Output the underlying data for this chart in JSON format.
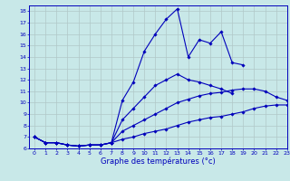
{
  "xlabel": "Graphe des températures (°c)",
  "ylabel_ticks": [
    6,
    7,
    8,
    9,
    10,
    11,
    12,
    13,
    14,
    15,
    16,
    17,
    18
  ],
  "xlim": [
    -0.5,
    23
  ],
  "ylim": [
    6,
    18.5
  ],
  "xticks": [
    0,
    1,
    2,
    3,
    4,
    5,
    6,
    7,
    8,
    9,
    10,
    11,
    12,
    13,
    14,
    15,
    16,
    17,
    18,
    19,
    20,
    21,
    22,
    23
  ],
  "background_color": "#c8e8e8",
  "line_color": "#0000bb",
  "grid_color": "#b0c8c8",
  "line_max_x": [
    0,
    1,
    2,
    3,
    4,
    5,
    6,
    7,
    8,
    9,
    10,
    11,
    12,
    13,
    14,
    15,
    16,
    17,
    18,
    19,
    20,
    21
  ],
  "line_max_y": [
    7.0,
    6.5,
    6.5,
    6.3,
    6.2,
    6.3,
    6.3,
    6.5,
    10.2,
    11.8,
    14.5,
    16.0,
    17.3,
    18.2,
    14.0,
    15.5,
    15.2,
    16.2,
    13.5,
    13.3,
    null,
    null
  ],
  "line_min_x": [
    0,
    1,
    2,
    3,
    4,
    5,
    6,
    7,
    8,
    9,
    10,
    11,
    12,
    13,
    14,
    15,
    16,
    17,
    18,
    19,
    20,
    21,
    22,
    23
  ],
  "line_min_y": [
    7.0,
    6.5,
    6.5,
    6.3,
    6.2,
    6.3,
    6.3,
    6.5,
    6.8,
    7.0,
    7.3,
    7.5,
    7.7,
    8.0,
    8.3,
    8.5,
    8.7,
    8.8,
    9.0,
    9.2,
    9.5,
    9.7,
    9.8,
    9.8
  ],
  "line_avg_x": [
    0,
    1,
    2,
    3,
    4,
    5,
    6,
    7,
    8,
    9,
    10,
    11,
    12,
    13,
    14,
    15,
    16,
    17,
    18,
    19,
    20,
    21,
    22,
    23
  ],
  "line_avg_y": [
    7.0,
    6.5,
    6.5,
    6.3,
    6.2,
    6.3,
    6.3,
    6.5,
    7.5,
    8.0,
    8.5,
    9.0,
    9.5,
    10.0,
    10.3,
    10.6,
    10.8,
    10.9,
    11.1,
    11.2,
    11.2,
    11.0,
    10.5,
    10.2
  ],
  "line_extra_x": [
    0,
    1,
    2,
    3,
    4,
    5,
    6,
    7,
    8,
    9,
    10,
    11,
    12,
    13,
    14,
    15,
    16,
    17,
    18
  ],
  "line_extra_y": [
    7.0,
    6.5,
    6.5,
    6.3,
    6.2,
    6.3,
    6.3,
    6.5,
    8.5,
    9.5,
    10.5,
    11.5,
    12.0,
    12.5,
    12.0,
    11.8,
    11.5,
    11.2,
    10.8
  ]
}
